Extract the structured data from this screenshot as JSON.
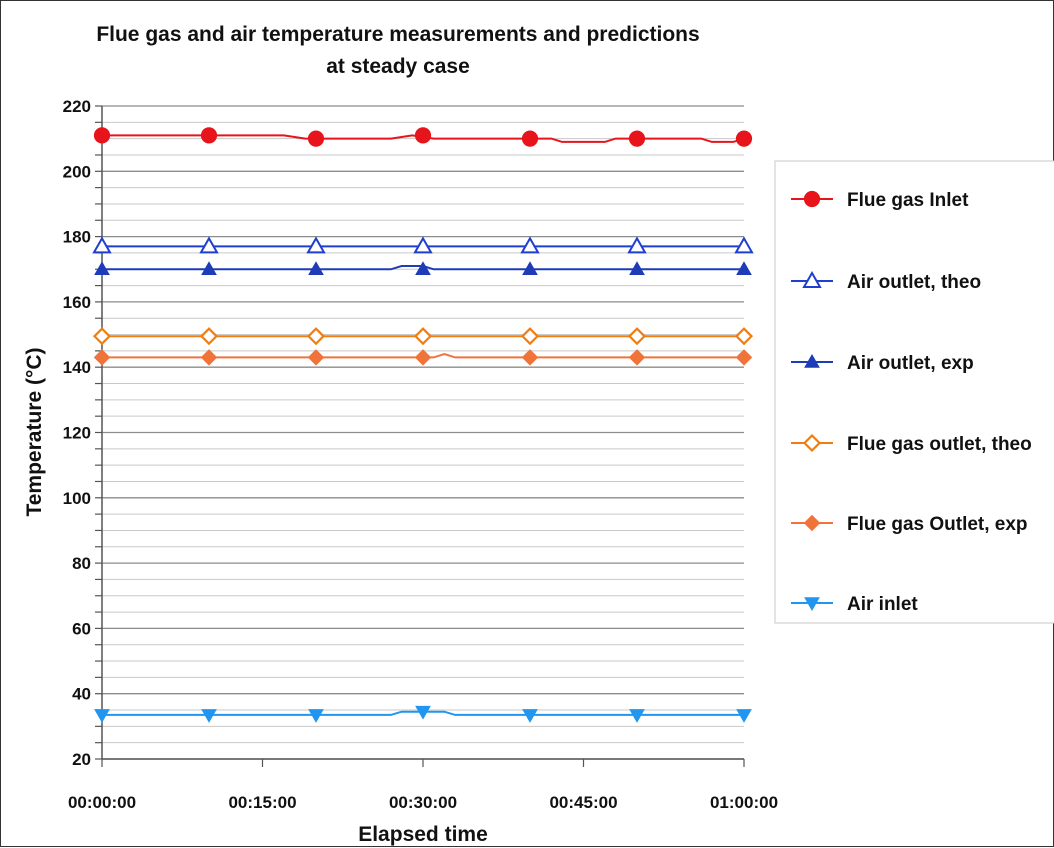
{
  "chart_data": {
    "type": "line",
    "title": [
      "Flue gas and air temperature measurements and predictions",
      "at steady case"
    ],
    "xlabel": "Elapsed time",
    "ylabel": "Temperature (°C)",
    "x_tick_labels": [
      "00:00:00",
      "00:15:00",
      "00:30:00",
      "00:45:00",
      "01:00:00"
    ],
    "x_tick_minutes": [
      0,
      15,
      30,
      45,
      60
    ],
    "xlim_minutes": [
      0,
      60
    ],
    "ylim": [
      20,
      220
    ],
    "y_major_step": 20,
    "y_minor_step": 5,
    "grid": true,
    "legend_position": "right",
    "series": [
      {
        "name": "Flue gas Inlet",
        "color": "#e8141b",
        "marker": "circle",
        "markers": [
          [
            0,
            211
          ],
          [
            10,
            211
          ],
          [
            20,
            210
          ],
          [
            30,
            211
          ],
          [
            40,
            210
          ],
          [
            50,
            210
          ],
          [
            60,
            210
          ]
        ],
        "line": [
          [
            0,
            211
          ],
          [
            17,
            211
          ],
          [
            19,
            210
          ],
          [
            27,
            210
          ],
          [
            29,
            211
          ],
          [
            31,
            210
          ],
          [
            42,
            210
          ],
          [
            43,
            209
          ],
          [
            47,
            209
          ],
          [
            48,
            210
          ],
          [
            56,
            210
          ],
          [
            57,
            209
          ],
          [
            59,
            209
          ],
          [
            60,
            210
          ]
        ]
      },
      {
        "name": "Air outlet, theo",
        "color": "#1f3fd0",
        "marker": "triangle-open",
        "markers": [
          [
            0,
            177
          ],
          [
            10,
            177
          ],
          [
            20,
            177
          ],
          [
            30,
            177
          ],
          [
            40,
            177
          ],
          [
            50,
            177
          ],
          [
            60,
            177
          ]
        ],
        "line": [
          [
            0,
            177
          ],
          [
            60,
            177
          ]
        ]
      },
      {
        "name": "Air outlet, exp",
        "color": "#1f3cb8",
        "marker": "triangle",
        "markers": [
          [
            0,
            170
          ],
          [
            10,
            170
          ],
          [
            20,
            170
          ],
          [
            30,
            170
          ],
          [
            40,
            170
          ],
          [
            50,
            170
          ],
          [
            60,
            170
          ]
        ],
        "line": [
          [
            0,
            170
          ],
          [
            27,
            170
          ],
          [
            28,
            171
          ],
          [
            30,
            171
          ],
          [
            31,
            170
          ],
          [
            60,
            170
          ]
        ]
      },
      {
        "name": "Flue gas outlet, theo",
        "color": "#f07d12",
        "marker": "diamond-open",
        "markers": [
          [
            0,
            149.5
          ],
          [
            10,
            149.5
          ],
          [
            20,
            149.5
          ],
          [
            30,
            149.5
          ],
          [
            40,
            149.5
          ],
          [
            50,
            149.5
          ],
          [
            60,
            149.5
          ]
        ],
        "line": [
          [
            0,
            149.5
          ],
          [
            60,
            149.5
          ]
        ]
      },
      {
        "name": "Flue gas Outlet, exp",
        "color": "#f0743a",
        "marker": "diamond",
        "markers": [
          [
            0,
            143
          ],
          [
            10,
            143
          ],
          [
            20,
            143
          ],
          [
            30,
            143
          ],
          [
            40,
            143
          ],
          [
            50,
            143
          ],
          [
            60,
            143
          ]
        ],
        "line": [
          [
            0,
            143
          ],
          [
            31,
            143
          ],
          [
            32,
            144
          ],
          [
            33,
            143
          ],
          [
            60,
            143
          ]
        ]
      },
      {
        "name": "Air inlet",
        "color": "#2196f0",
        "marker": "triangle-down",
        "markers": [
          [
            0,
            33.5
          ],
          [
            10,
            33.5
          ],
          [
            20,
            33.5
          ],
          [
            30,
            34.5
          ],
          [
            40,
            33.5
          ],
          [
            50,
            33.5
          ],
          [
            60,
            33.5
          ]
        ],
        "line": [
          [
            0,
            33.5
          ],
          [
            27,
            33.5
          ],
          [
            28,
            34.5
          ],
          [
            32,
            34.5
          ],
          [
            33,
            33.5
          ],
          [
            60,
            33.5
          ]
        ]
      }
    ]
  }
}
